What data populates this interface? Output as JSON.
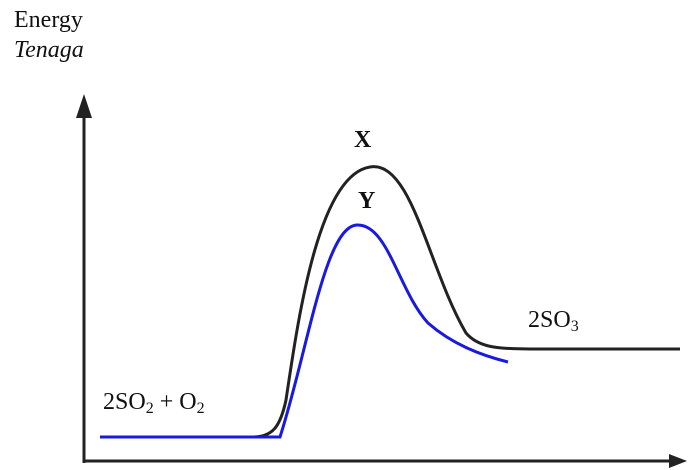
{
  "axis": {
    "y_label_en": "Energy",
    "y_label_my": "Tenaga"
  },
  "curves": {
    "x": {
      "label": "X",
      "color": "#222222"
    },
    "y": {
      "label": "Y",
      "color": "#1a1adf"
    }
  },
  "product": {
    "base": "2SO",
    "sub": "3"
  },
  "reactants": {
    "base1": "2SO",
    "sub1": "2",
    "plus": " + O",
    "sub2": "2"
  },
  "colors": {
    "axis": "#222222",
    "catalysed_curve": "#1a1adf",
    "uncatalysed_curve": "#222222"
  }
}
